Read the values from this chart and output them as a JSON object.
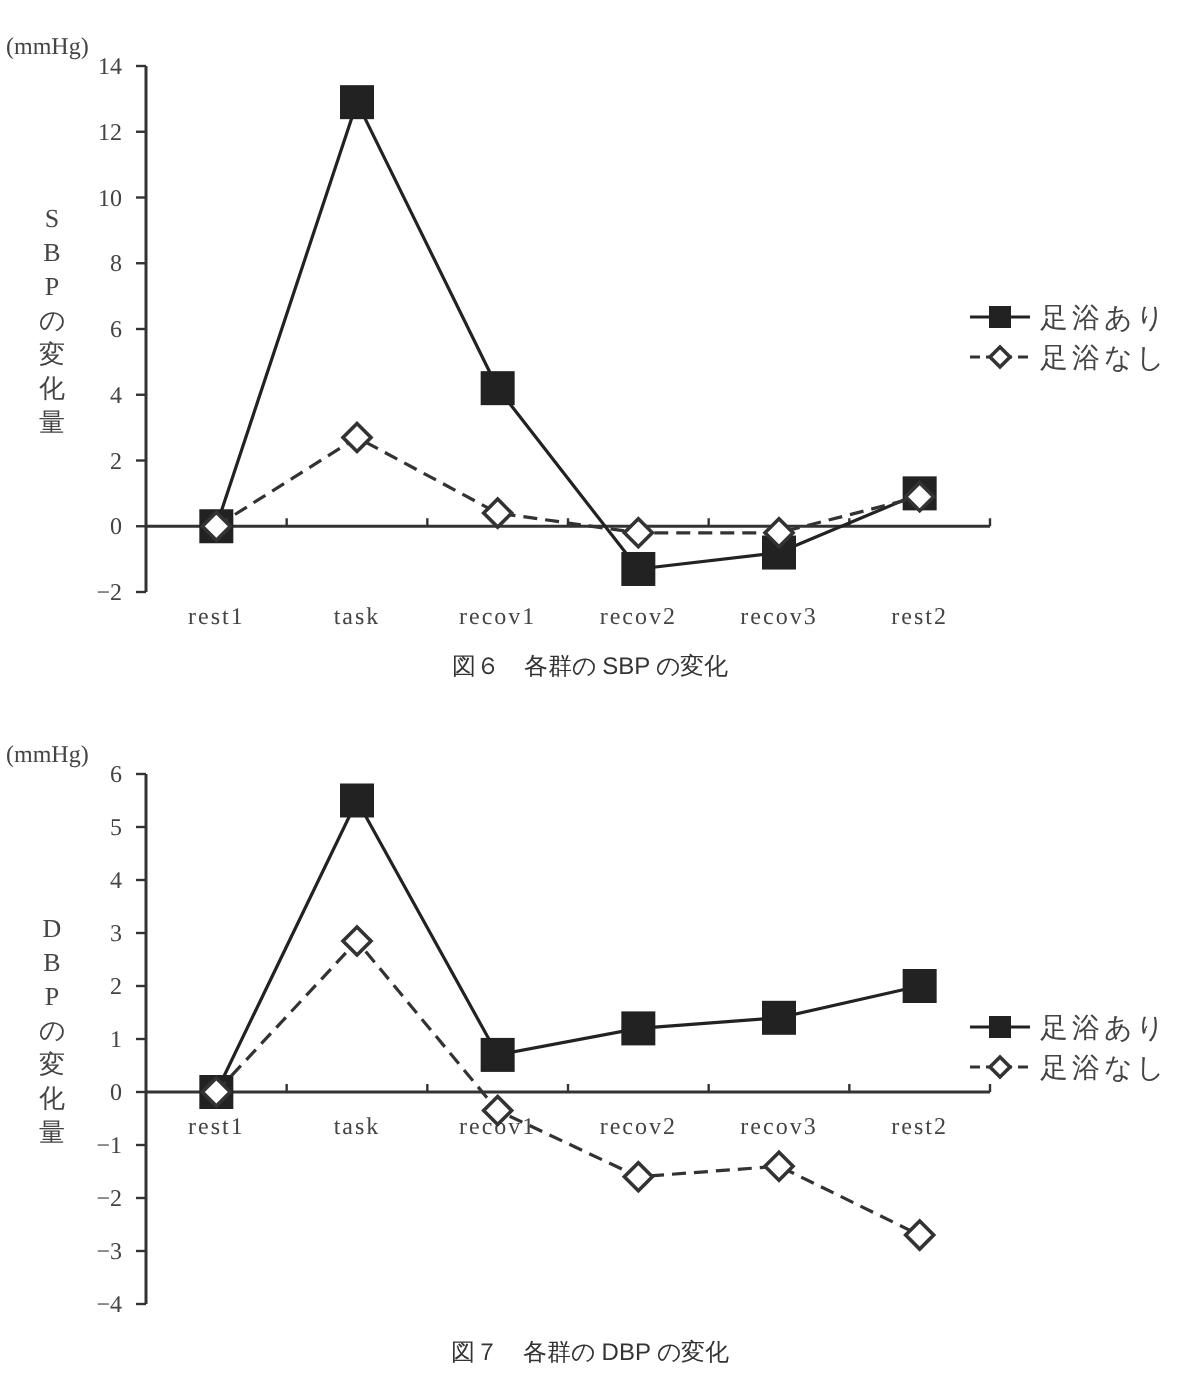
{
  "chart_data": [
    {
      "type": "line",
      "title": "図６　各群の SBP の変化",
      "ylabel": "SBPの変化量",
      "annotations": [
        "(mmHg)"
      ],
      "categories": [
        "rest1",
        "task",
        "recov1",
        "recov2",
        "recov3",
        "rest2"
      ],
      "series": [
        {
          "name": "足浴あり",
          "color": "#222222",
          "marker": "square",
          "line_style": "solid",
          "values": [
            0,
            12.9,
            4.2,
            -1.3,
            -0.8,
            1.0
          ]
        },
        {
          "name": "足浴なし",
          "color": "#333333",
          "marker": "diamond",
          "line_style": "dashed",
          "values": [
            0,
            2.7,
            0.4,
            -0.2,
            -0.2,
            0.9
          ]
        }
      ],
      "ylim": [
        -2,
        14
      ],
      "yticks": [
        -2,
        0,
        2,
        4,
        6,
        8,
        10,
        12,
        14
      ],
      "legend": "right"
    },
    {
      "type": "line",
      "title": "図７　各群の DBP の変化",
      "ylabel": "DBPの変化量",
      "annotations": [
        "(mmHg)"
      ],
      "categories": [
        "rest1",
        "task",
        "recov1",
        "recov2",
        "recov3",
        "rest2"
      ],
      "series": [
        {
          "name": "足浴あり",
          "color": "#222222",
          "marker": "square",
          "line_style": "solid",
          "values": [
            0,
            5.5,
            0.7,
            1.2,
            1.4,
            2.0
          ]
        },
        {
          "name": "足浴なし",
          "color": "#333333",
          "marker": "diamond",
          "line_style": "dashed",
          "values": [
            0,
            2.85,
            -0.35,
            -1.6,
            -1.4,
            -2.7
          ]
        }
      ],
      "ylim": [
        -4,
        6
      ],
      "yticks": [
        -4,
        -3,
        -2,
        -1,
        0,
        1,
        2,
        3,
        4,
        5,
        6
      ],
      "legend": "right"
    }
  ]
}
